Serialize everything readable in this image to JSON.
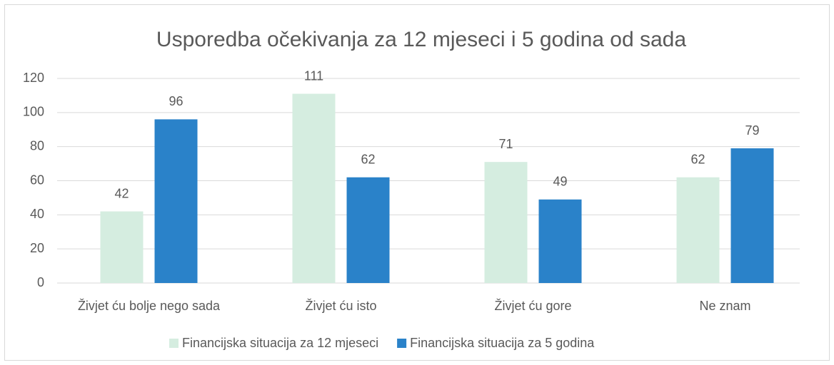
{
  "chart_data": {
    "type": "bar",
    "title": "Usporedba očekivanja za 12 mjeseci i 5 godina od sada",
    "categories": [
      "Živjet ću bolje nego sada",
      "Živjet ću isto",
      "Živjet ću gore",
      "Ne znam"
    ],
    "series": [
      {
        "name": "Financijska situacija za 12 mjeseci",
        "color": "#d5ede0",
        "values": [
          42,
          111,
          71,
          62
        ]
      },
      {
        "name": "Financijska situacija za 5 godina",
        "color": "#2a82c9",
        "values": [
          96,
          62,
          49,
          79
        ]
      }
    ],
    "ylim": [
      0,
      120
    ],
    "yticks": [
      0,
      20,
      40,
      60,
      80,
      100,
      120
    ],
    "grid": true,
    "legend": "bottom"
  }
}
